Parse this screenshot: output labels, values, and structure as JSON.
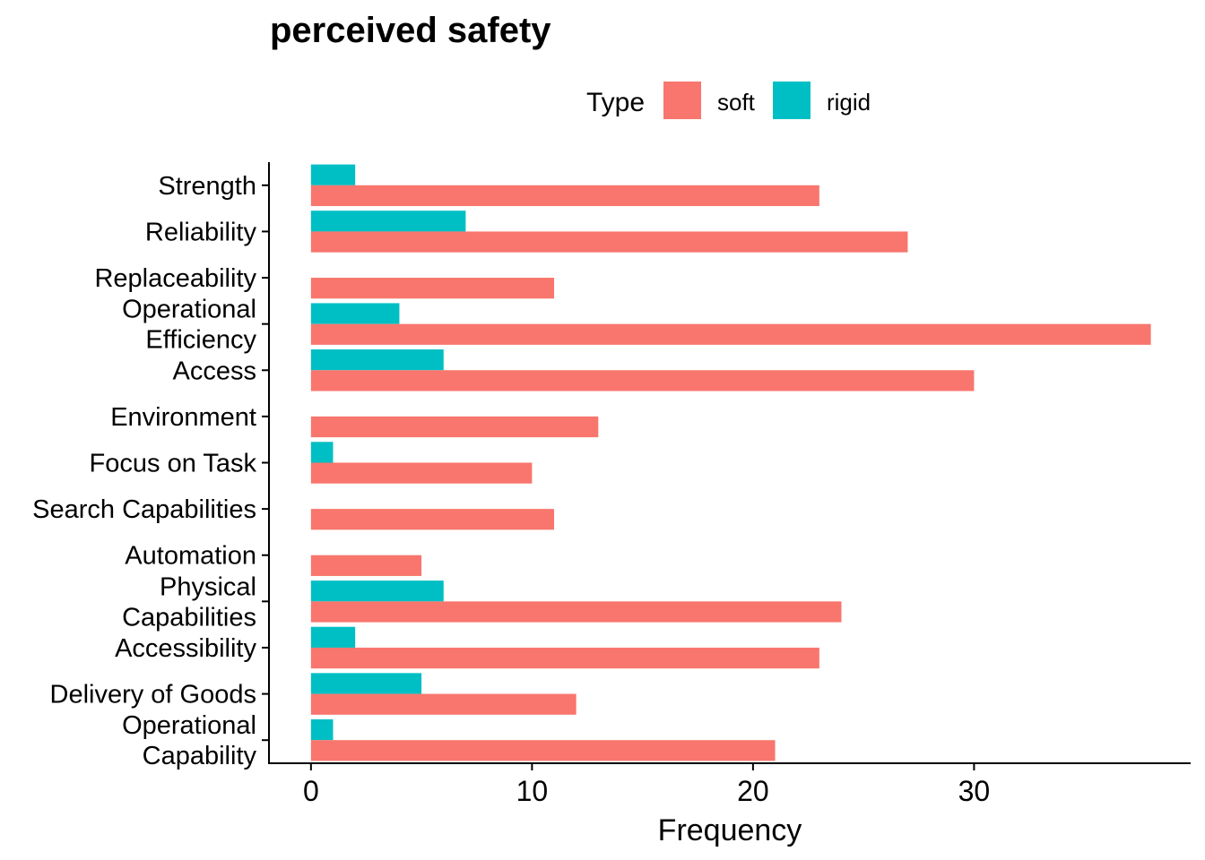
{
  "chart_data": {
    "type": "bar",
    "orientation": "horizontal",
    "title": "perceived safety",
    "xlabel": "Frequency",
    "ylabel": "",
    "categories": [
      [
        "Strength"
      ],
      [
        "Reliability"
      ],
      [
        "Replaceability"
      ],
      [
        "Operational",
        "Efficiency"
      ],
      [
        "Access"
      ],
      [
        "Environment"
      ],
      [
        "Focus on Task"
      ],
      [
        "Search Capabilities"
      ],
      [
        "Automation"
      ],
      [
        "Physical",
        "Capabilities"
      ],
      [
        "Accessibility"
      ],
      [
        "Delivery of Goods"
      ],
      [
        "Operational",
        "Capability"
      ]
    ],
    "legend": {
      "title": "Type",
      "position": "top"
    },
    "series": [
      {
        "name": "soft",
        "color": "#F8766D",
        "values": [
          23,
          27,
          11,
          38,
          30,
          13,
          10,
          11,
          5,
          24,
          23,
          12,
          21
        ]
      },
      {
        "name": "rigid",
        "color": "#00BFC4",
        "values": [
          2,
          7,
          0,
          4,
          6,
          0,
          1,
          0,
          0,
          6,
          2,
          5,
          1
        ]
      }
    ],
    "xticks": [
      0,
      10,
      20,
      30
    ],
    "xlim": [
      -1.9,
      39.8
    ],
    "grid": false
  }
}
